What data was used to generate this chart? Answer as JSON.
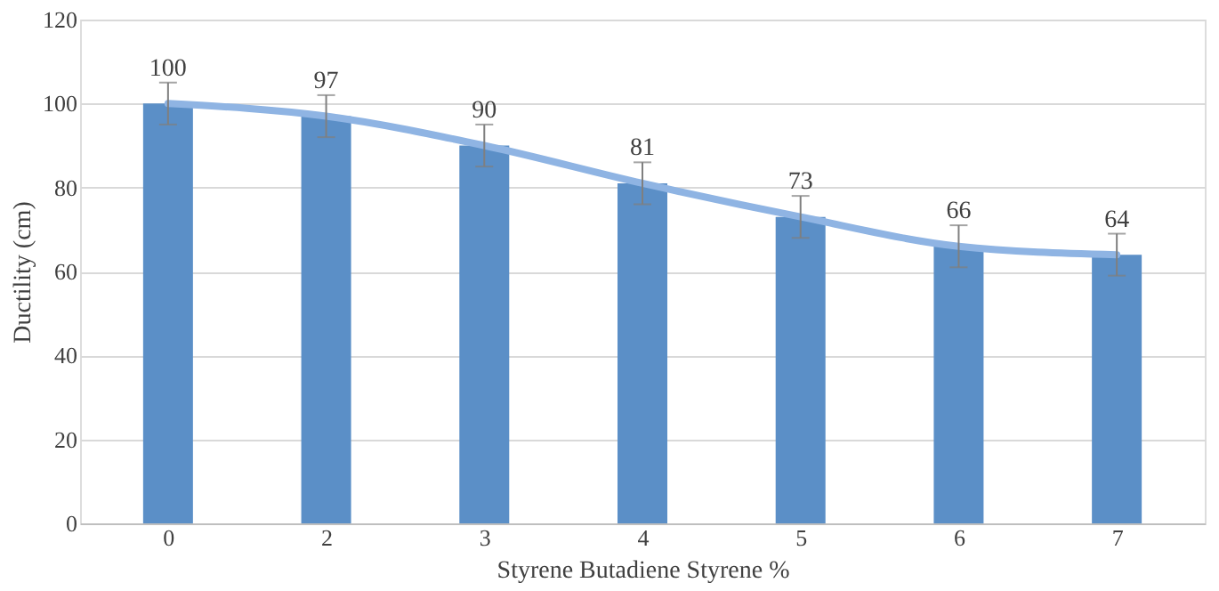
{
  "chart_data": {
    "type": "bar",
    "xlabel": "Styrene Butadiene Styrene %",
    "ylabel": "Ductility (cm)",
    "categories": [
      "0",
      "2",
      "3",
      "4",
      "5",
      "6",
      "7"
    ],
    "series": [
      {
        "color": "#5b8fc7",
        "values": [
          100,
          97,
          90,
          81,
          73,
          66,
          64
        ],
        "errors": [
          5,
          5,
          5,
          5,
          5,
          5,
          5
        ],
        "data_labels": true
      },
      {
        "type": "line",
        "color": "#8fb4e3",
        "values": [
          100,
          97,
          90,
          81,
          73,
          66,
          64
        ]
      }
    ],
    "ylim": [
      0,
      120
    ],
    "yticks": [
      0,
      20,
      40,
      60,
      80,
      100,
      120
    ],
    "grid": "y"
  }
}
